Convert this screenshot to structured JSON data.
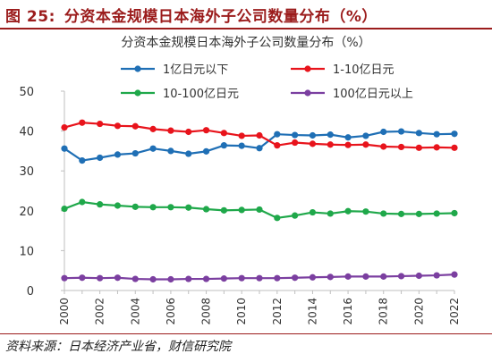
{
  "figure": {
    "number": "图 25:",
    "title": "分资本金规模日本海外子公司数量分布（%）"
  },
  "source": "资料来源：日本经济产业省，财信研究院",
  "chart_data": {
    "type": "line",
    "title": "分资本金规模日本海外子公司数量分布（%）",
    "xlabel": "",
    "ylabel": "",
    "x": [
      2000,
      2001,
      2002,
      2003,
      2004,
      2005,
      2006,
      2007,
      2008,
      2009,
      2010,
      2011,
      2012,
      2013,
      2014,
      2015,
      2016,
      2017,
      2018,
      2019,
      2020,
      2021,
      2022
    ],
    "x_tick_labels": [
      "2000",
      "2002",
      "2004",
      "2006",
      "2008",
      "2010",
      "2012",
      "2014",
      "2016",
      "2018",
      "2020",
      "2022"
    ],
    "ylim": [
      0,
      50
    ],
    "y_ticks": [
      0,
      10,
      20,
      30,
      40,
      50
    ],
    "grid": false,
    "legend_position": "top",
    "series": [
      {
        "name": "1亿日元以下",
        "color": "#1f6fb5",
        "values": [
          35.6,
          32.6,
          33.3,
          34.1,
          34.4,
          35.6,
          35.0,
          34.3,
          34.9,
          36.4,
          36.3,
          35.7,
          39.2,
          39.0,
          38.9,
          39.1,
          38.4,
          38.8,
          39.8,
          39.9,
          39.5,
          39.2,
          39.3
        ]
      },
      {
        "name": "1-10亿日元",
        "color": "#e8141c",
        "values": [
          40.9,
          42.1,
          41.8,
          41.3,
          41.2,
          40.5,
          40.1,
          39.8,
          40.2,
          39.5,
          38.8,
          38.9,
          36.4,
          37.1,
          36.8,
          36.6,
          36.5,
          36.6,
          36.1,
          36.0,
          35.8,
          35.9,
          35.8
        ]
      },
      {
        "name": "10-100亿日元",
        "color": "#1fa84a",
        "values": [
          20.5,
          22.2,
          21.6,
          21.3,
          21.0,
          20.9,
          20.9,
          20.8,
          20.4,
          20.1,
          20.2,
          20.3,
          18.2,
          18.8,
          19.6,
          19.3,
          19.9,
          19.8,
          19.3,
          19.2,
          19.2,
          19.3,
          19.4
        ]
      },
      {
        "name": "100亿日元以上",
        "color": "#7b3fa0",
        "values": [
          3.1,
          3.2,
          3.1,
          3.2,
          2.9,
          2.8,
          2.8,
          2.9,
          2.9,
          3.0,
          3.1,
          3.1,
          3.1,
          3.2,
          3.3,
          3.4,
          3.5,
          3.5,
          3.5,
          3.6,
          3.7,
          3.8,
          4.0
        ]
      }
    ]
  }
}
